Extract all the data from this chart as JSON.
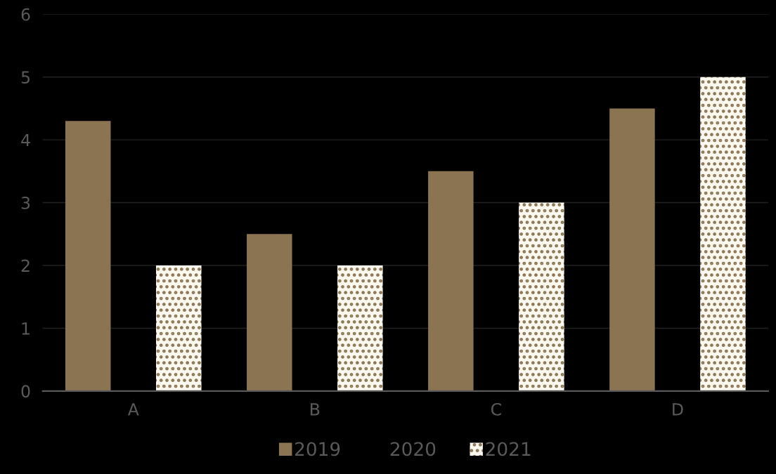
{
  "chart_data": {
    "type": "bar",
    "categories": [
      "A",
      "B",
      "C",
      "D"
    ],
    "series": [
      {
        "name": "2019",
        "color": "#8b7451",
        "values": [
          4.3,
          2.5,
          3.5,
          4.5
        ]
      },
      {
        "name": "2020",
        "values": [
          null,
          null,
          null,
          null
        ]
      },
      {
        "name": "2021",
        "color": "#fbf8f0",
        "values": [
          2,
          2,
          3,
          5
        ]
      }
    ],
    "ylim": [
      0,
      6
    ],
    "yticks": [
      0,
      1,
      2,
      3,
      4,
      5,
      6
    ],
    "grid": "y",
    "legend": "bottom"
  }
}
